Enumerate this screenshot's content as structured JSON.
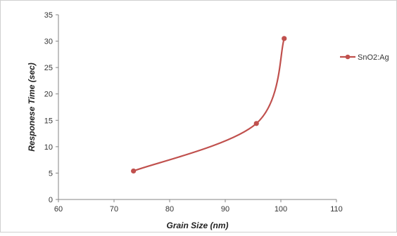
{
  "chart_data": {
    "type": "line",
    "title": "",
    "xlabel": "Grain Size (nm)",
    "ylabel": "Responese Time (sec)",
    "xlim": [
      60,
      110
    ],
    "ylim": [
      0,
      35
    ],
    "x_ticks": [
      60,
      70,
      80,
      90,
      100,
      110
    ],
    "y_ticks": [
      0,
      5,
      10,
      15,
      20,
      25,
      30,
      35
    ],
    "grid": false,
    "legend_position": "right",
    "smooth": true,
    "series": [
      {
        "name": "SnO2:Ag",
        "color": "#c0504d",
        "marker": "circle",
        "x": [
          73.5,
          95.6,
          100.6
        ],
        "y": [
          5.4,
          14.4,
          30.5
        ]
      }
    ]
  }
}
